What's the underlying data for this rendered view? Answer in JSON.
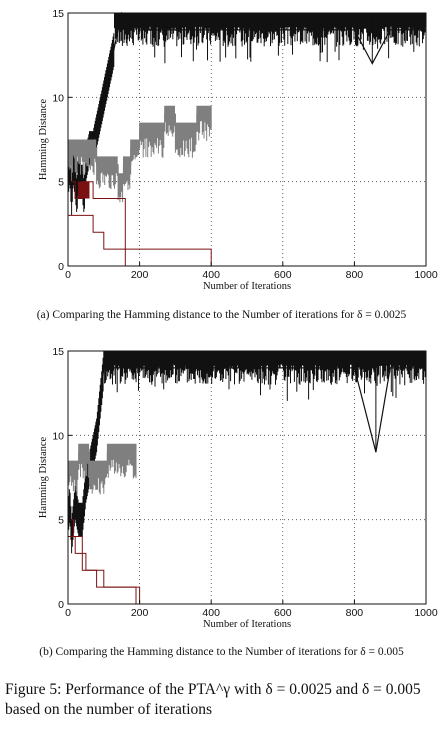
{
  "figure": {
    "caption": "Figure 5: Performance of the PTA^γ with δ = 0.0025 and δ = 0.005 based on the number of iterations"
  },
  "colors": {
    "high_runs": "#111111",
    "gray_runs": "#7f7f7f",
    "red_runs": "#7a1010",
    "grid": "#444444"
  },
  "chart_data": [
    {
      "type": "line",
      "subcaption": "(a) Comparing the Hamming distance to the Number of iterations for δ = 0.0025",
      "xlabel": "Number of Iterations",
      "ylabel": "Hamming Distance",
      "xlim": [
        0,
        1000
      ],
      "ylim": [
        0,
        15
      ],
      "xticks": [
        0,
        200,
        400,
        600,
        800,
        1000
      ],
      "yticks": [
        0,
        5,
        10,
        15
      ],
      "grid": "dotted",
      "series": [
        {
          "style": "black",
          "band": [
            13,
            15
          ],
          "x": [
            0,
            5,
            10,
            15,
            20,
            25,
            30,
            35,
            40,
            45,
            50,
            60,
            70,
            80,
            90,
            100,
            110,
            120,
            130,
            140,
            150,
            200,
            300,
            400,
            500,
            600,
            700,
            800,
            850,
            900,
            1000
          ],
          "y": [
            5,
            6,
            4,
            6,
            5,
            4,
            6,
            5,
            5,
            4,
            6,
            7,
            7,
            8,
            9,
            10,
            11,
            12,
            13,
            14,
            15,
            14,
            14,
            14,
            14,
            14,
            14,
            14,
            12,
            14,
            14
          ]
        },
        {
          "style": "gray",
          "x": [
            0,
            80,
            80,
            140,
            140,
            155,
            155,
            175,
            175,
            200,
            200,
            270,
            270,
            300,
            300,
            360,
            360,
            400
          ],
          "y": [
            7,
            7,
            6,
            6,
            5,
            5,
            6,
            6,
            7,
            7,
            8,
            8,
            9,
            9,
            8,
            8,
            9,
            9
          ]
        },
        {
          "style": "red",
          "x": [
            0,
            20,
            20,
            40,
            40,
            70,
            70,
            160,
            160,
            400,
            400
          ],
          "y": [
            5,
            5,
            4,
            4,
            5,
            5,
            4,
            4,
            1,
            1,
            0
          ]
        },
        {
          "style": "red",
          "x": [
            0,
            70,
            70,
            100,
            100,
            160,
            160
          ],
          "y": [
            3,
            3,
            2,
            2,
            1,
            1,
            0
          ]
        }
      ]
    },
    {
      "type": "line",
      "subcaption": "(b) Comparing the Hamming distance to the Number of iterations for δ = 0.005",
      "xlabel": "Number of Iterations",
      "ylabel": "Hamming Distance",
      "xlim": [
        0,
        1000
      ],
      "ylim": [
        0,
        15
      ],
      "xticks": [
        0,
        200,
        400,
        600,
        800,
        1000
      ],
      "yticks": [
        0,
        5,
        10,
        15
      ],
      "grid": "dotted",
      "series": [
        {
          "style": "black",
          "band": [
            13,
            15
          ],
          "x": [
            0,
            5,
            10,
            20,
            30,
            40,
            50,
            60,
            70,
            80,
            90,
            100,
            200,
            400,
            600,
            800,
            860,
            900,
            1000
          ],
          "y": [
            5,
            6,
            4,
            6,
            5,
            5,
            7,
            8,
            9,
            10,
            12,
            14,
            14,
            14,
            14,
            14,
            9,
            14,
            14
          ]
        },
        {
          "style": "gray",
          "x": [
            0,
            30,
            30,
            60,
            60,
            110,
            110,
            190
          ],
          "y": [
            8,
            8,
            9,
            9,
            8,
            8,
            9,
            9
          ]
        },
        {
          "style": "red",
          "x": [
            0,
            15,
            15,
            40,
            40,
            80,
            80,
            190,
            190
          ],
          "y": [
            5,
            5,
            4,
            4,
            2,
            2,
            1,
            1,
            0
          ]
        },
        {
          "style": "red",
          "x": [
            0,
            20,
            20,
            50,
            50,
            100,
            100,
            200,
            200
          ],
          "y": [
            4,
            4,
            3,
            3,
            2,
            2,
            1,
            1,
            0
          ]
        }
      ]
    }
  ]
}
